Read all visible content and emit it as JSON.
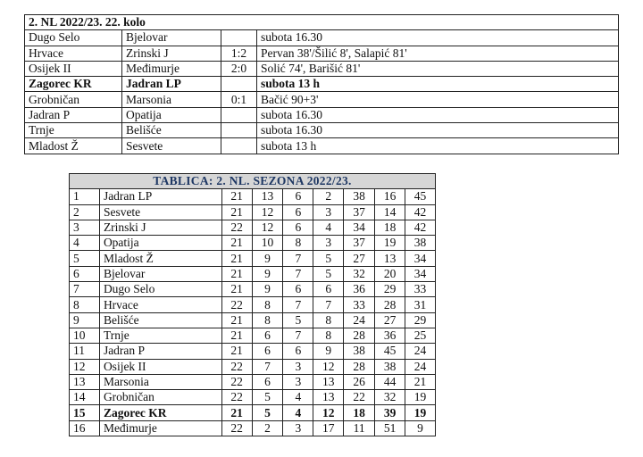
{
  "fixtures": {
    "title": "2. NL 2022/23. 22. kolo",
    "rows": [
      {
        "home": "Dugo Selo",
        "away": "Bjelovar",
        "score": "",
        "info": "subota 16.30",
        "bold": false
      },
      {
        "home": "Hrvace",
        "away": "Zrinski J",
        "score": "1:2",
        "info": "Pervan 38'/Šilić 8', Salapić 81'",
        "bold": false
      },
      {
        "home": "Osijek II",
        "away": "Međimurje",
        "score": "2:0",
        "info": "Solić 74', Barišić 81'",
        "bold": false
      },
      {
        "home": "Zagorec KR",
        "away": "Jadran LP",
        "score": "",
        "info": "subota 13 h",
        "bold": true
      },
      {
        "home": "Grobničan",
        "away": "Marsonia",
        "score": "0:1",
        "info": "Bačić 90+3'",
        "bold": false
      },
      {
        "home": "Jadran P",
        "away": "Opatija",
        "score": "",
        "info": "subota 16.30",
        "bold": false
      },
      {
        "home": "Trnje",
        "away": "Belišće",
        "score": "",
        "info": "subota 16.30",
        "bold": false
      },
      {
        "home": "Mladost Ž",
        "away": "Sesvete",
        "score": "",
        "info": "subota 13 h",
        "bold": false
      }
    ]
  },
  "standings": {
    "title": "TABLICA: 2. NL. SEZONA 2022/23.",
    "header_bg": "#d6d6d6",
    "title_color": "#1f3864",
    "rows": [
      [
        "1",
        "Jadran LP",
        "21",
        "13",
        "6",
        "2",
        "38",
        "16",
        "45"
      ],
      [
        "2",
        "Sesvete",
        "21",
        "12",
        "6",
        "3",
        "37",
        "14",
        "42"
      ],
      [
        "3",
        "Zrinski J",
        "22",
        "12",
        "6",
        "4",
        "34",
        "18",
        "42"
      ],
      [
        "4",
        "Opatija",
        "21",
        "10",
        "8",
        "3",
        "37",
        "19",
        "38"
      ],
      [
        "5",
        "Mladost Ž",
        "21",
        "9",
        "7",
        "5",
        "27",
        "13",
        "34"
      ],
      [
        "6",
        "Bjelovar",
        "21",
        "9",
        "7",
        "5",
        "32",
        "20",
        "34"
      ],
      [
        "7",
        "Dugo Selo",
        "21",
        "9",
        "6",
        "6",
        "36",
        "29",
        "33"
      ],
      [
        "8",
        "Hrvace",
        "22",
        "8",
        "7",
        "7",
        "33",
        "28",
        "31"
      ],
      [
        "9",
        "Belišće",
        "21",
        "8",
        "5",
        "8",
        "24",
        "27",
        "29"
      ],
      [
        "10",
        "Trnje",
        "21",
        "6",
        "7",
        "8",
        "28",
        "36",
        "25"
      ],
      [
        "11",
        "Jadran P",
        "21",
        "6",
        "6",
        "9",
        "38",
        "45",
        "24"
      ],
      [
        "12",
        "Osijek II",
        "22",
        "7",
        "3",
        "12",
        "28",
        "38",
        "24"
      ],
      [
        "13",
        "Marsonia",
        "22",
        "6",
        "3",
        "13",
        "26",
        "44",
        "21"
      ],
      [
        "14",
        "Grobničan",
        "22",
        "5",
        "4",
        "13",
        "22",
        "32",
        "19"
      ],
      [
        "15",
        "Zagorec KR",
        "21",
        "5",
        "4",
        "12",
        "18",
        "39",
        "19"
      ],
      [
        "16",
        "Međimurje",
        "22",
        "2",
        "3",
        "17",
        "11",
        "51",
        "9"
      ]
    ],
    "bold_row": "15"
  }
}
